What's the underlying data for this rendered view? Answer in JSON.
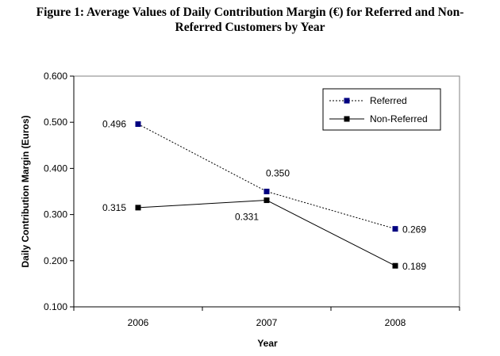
{
  "figure": {
    "title_line1": "Figure 1: Average Values of Daily Contribution Margin (€) for Referred and Non-",
    "title_line2": "Referred Customers by Year"
  },
  "chart_data": {
    "type": "line",
    "title": "Figure 1: Average Values of Daily Contribution Margin (€) for Referred and Non-Referred Customers by Year",
    "xlabel": "Year",
    "ylabel": "Daily Contribution Margin (Euros)",
    "categories": [
      "2006",
      "2007",
      "2008"
    ],
    "ylim": [
      0.1,
      0.6
    ],
    "yticks": [
      "0.100",
      "0.200",
      "0.300",
      "0.400",
      "0.500",
      "0.600"
    ],
    "grid": false,
    "legend_position": "top-right",
    "series": [
      {
        "name": "Referred",
        "values": [
          0.496,
          0.35,
          0.269
        ],
        "labels": [
          "0.496",
          "0.350",
          "0.269"
        ],
        "line_style": "dotted",
        "line_color": "#000000",
        "marker_color": "#000080"
      },
      {
        "name": "Non-Referred",
        "values": [
          0.315,
          0.331,
          0.189
        ],
        "labels": [
          "0.315",
          "0.331",
          "0.189"
        ],
        "line_style": "solid",
        "line_color": "#000000",
        "marker_color": "#000000"
      }
    ]
  }
}
